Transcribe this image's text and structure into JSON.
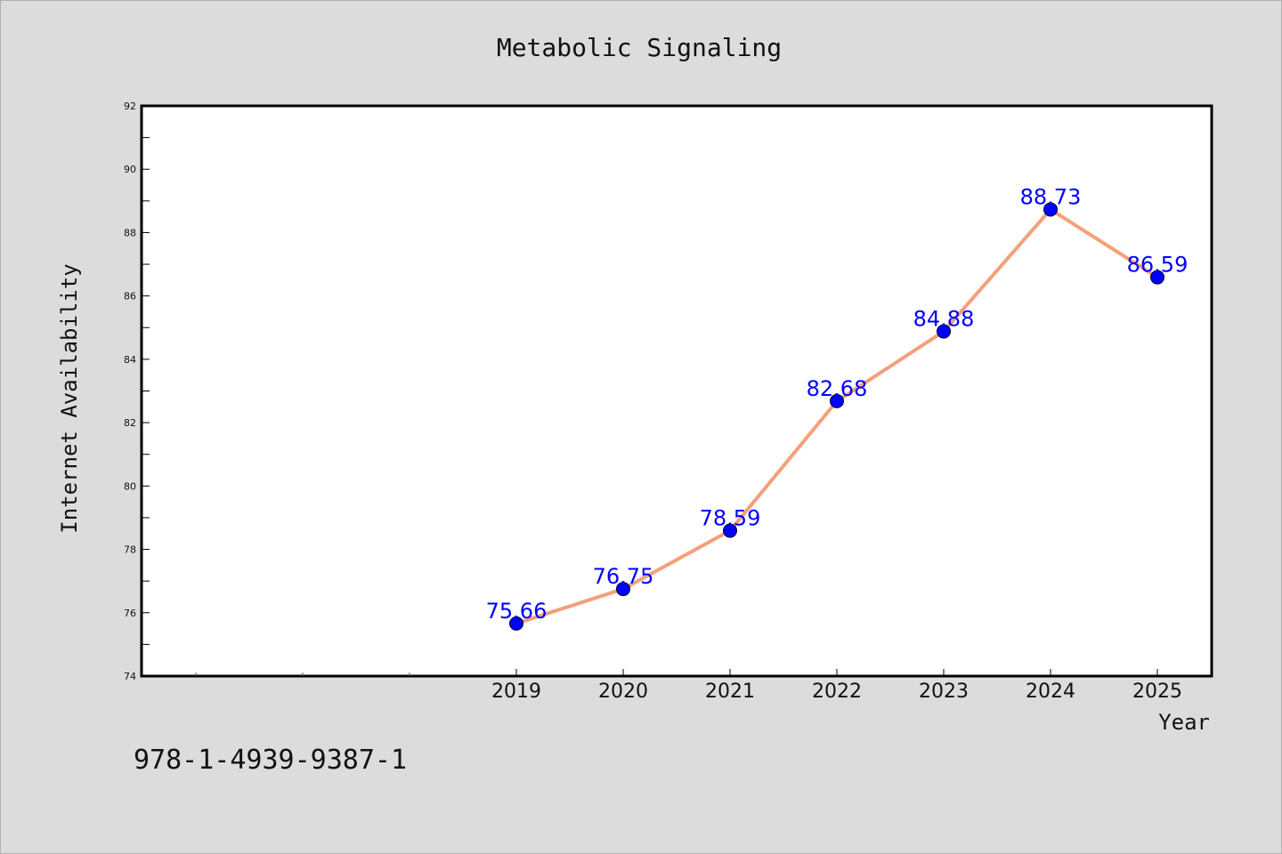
{
  "chart_data": {
    "type": "line",
    "title": "Metabolic Signaling",
    "xlabel": "Year",
    "ylabel": "Internet Availability",
    "categories": [
      "2019",
      "2020",
      "2021",
      "2022",
      "2023",
      "2024",
      "2025"
    ],
    "series": [
      {
        "values": [
          75.66,
          76.75,
          78.59,
          82.68,
          84.88,
          88.73,
          86.59
        ]
      }
    ],
    "value_labels": [
      "75.66",
      "76.75",
      "78.59",
      "82.68",
      "84.88",
      "88.73",
      "86.59"
    ],
    "ylim": [
      74,
      92
    ],
    "yticks": [
      "74",
      "76",
      "78",
      "80",
      "82",
      "84",
      "86",
      "88",
      "90",
      "92"
    ],
    "grid": false,
    "line_color": "#f4a07a",
    "marker_color": "#0000ff",
    "label_color": "#0000ff"
  },
  "footer_text": "978-1-4939-9387-1"
}
